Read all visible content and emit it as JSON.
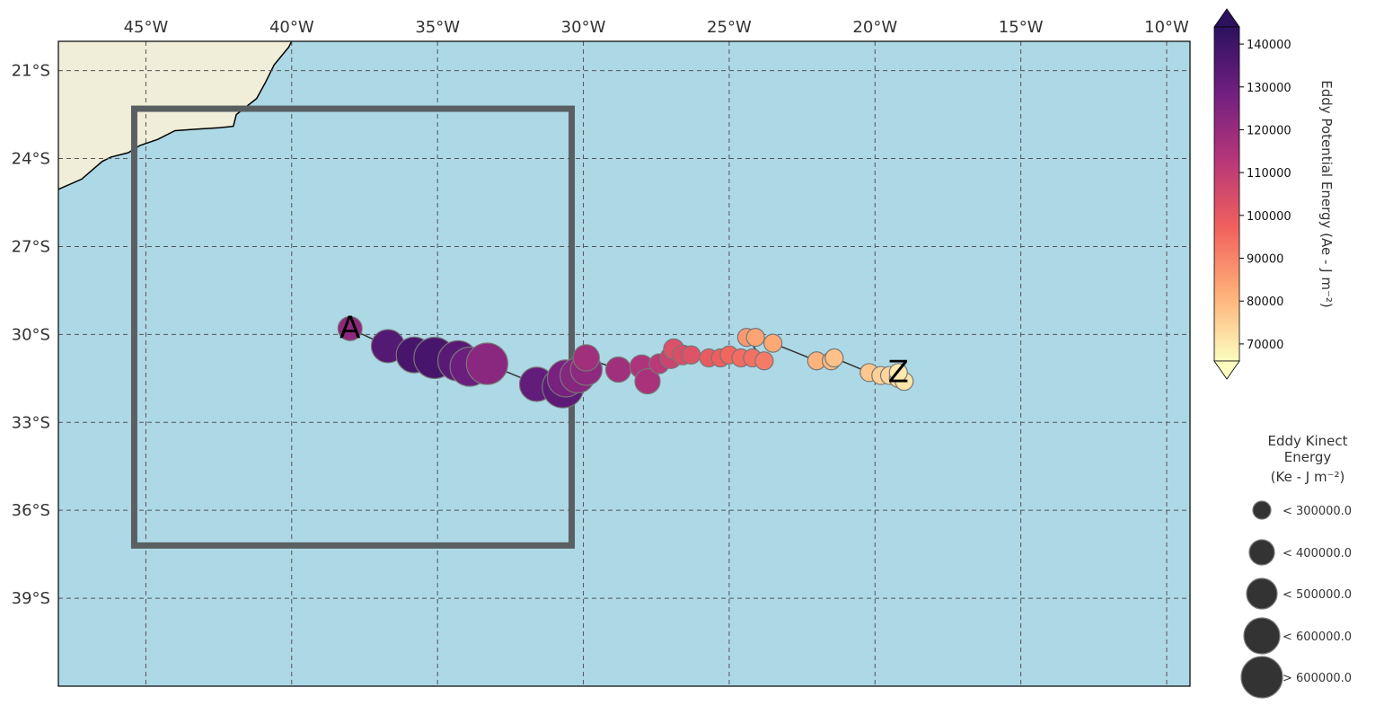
{
  "chart_data": {
    "type": "scatter",
    "title": "",
    "map": {
      "lon_range": [
        -48,
        -9.2
      ],
      "lat_range": [
        -20,
        -42
      ],
      "ocean_color": "#add8e6",
      "land_color": "#f0eed8",
      "grid": true,
      "lon_ticks": [
        -45,
        -40,
        -35,
        -30,
        -25,
        -20,
        -15,
        -10
      ],
      "lon_tick_labels": [
        "45°W",
        "40°W",
        "35°W",
        "30°W",
        "25°W",
        "20°W",
        "15°W",
        "10°W"
      ],
      "lat_ticks": [
        -21,
        -24,
        -27,
        -30,
        -33,
        -36,
        -39
      ],
      "lat_tick_labels": [
        "21°S",
        "24°S",
        "27°S",
        "30°S",
        "33°S",
        "36°S",
        "39°S"
      ]
    },
    "region_box": {
      "lon_min": -45.4,
      "lon_max": -30.4,
      "lat_min": -37.2,
      "lat_max": -22.3,
      "color": "#5a5f62"
    },
    "track": {
      "start_label": "A",
      "end_label": "Z",
      "points": [
        {
          "lon": -38.0,
          "lat": -29.8,
          "ape": 122000,
          "ke": 280000
        },
        {
          "lon": -36.7,
          "lat": -30.4,
          "ape": 135000,
          "ke": 450000
        },
        {
          "lon": -35.8,
          "lat": -30.7,
          "ape": 138000,
          "ke": 500000
        },
        {
          "lon": -35.1,
          "lat": -30.8,
          "ape": 138000,
          "ke": 650000
        },
        {
          "lon": -34.3,
          "lat": -30.9,
          "ape": 134000,
          "ke": 580000
        },
        {
          "lon": -33.9,
          "lat": -31.1,
          "ape": 130000,
          "ke": 560000
        },
        {
          "lon": -33.3,
          "lat": -31.0,
          "ape": 123000,
          "ke": 620000
        },
        {
          "lon": -31.6,
          "lat": -31.7,
          "ape": 132000,
          "ke": 470000
        },
        {
          "lon": -30.7,
          "lat": -31.8,
          "ape": 133000,
          "ke": 630000
        },
        {
          "lon": -30.6,
          "lat": -31.5,
          "ape": 127000,
          "ke": 520000
        },
        {
          "lon": -30.2,
          "lat": -31.4,
          "ape": 124000,
          "ke": 480000
        },
        {
          "lon": -29.9,
          "lat": -31.2,
          "ape": 122000,
          "ke": 420000
        },
        {
          "lon": -29.9,
          "lat": -30.8,
          "ape": 118000,
          "ke": 320000
        },
        {
          "lon": -28.8,
          "lat": -31.2,
          "ape": 118000,
          "ke": 300000
        },
        {
          "lon": -28.0,
          "lat": -31.1,
          "ape": 115000,
          "ke": 270000
        },
        {
          "lon": -27.8,
          "lat": -31.6,
          "ape": 116000,
          "ke": 300000
        },
        {
          "lon": -27.4,
          "lat": -31.0,
          "ape": 112000,
          "ke": 200000
        },
        {
          "lon": -27.0,
          "lat": -30.8,
          "ape": 108000,
          "ke": 230000
        },
        {
          "lon": -26.9,
          "lat": -30.5,
          "ape": 103000,
          "ke": 210000
        },
        {
          "lon": -26.6,
          "lat": -30.7,
          "ape": 104000,
          "ke": 200000
        },
        {
          "lon": -26.3,
          "lat": -30.7,
          "ape": 102000,
          "ke": 170000
        },
        {
          "lon": -25.7,
          "lat": -30.8,
          "ape": 99000,
          "ke": 160000
        },
        {
          "lon": -25.3,
          "lat": -30.8,
          "ape": 98000,
          "ke": 155000
        },
        {
          "lon": -25.0,
          "lat": -30.7,
          "ape": 96000,
          "ke": 150000
        },
        {
          "lon": -24.6,
          "lat": -30.8,
          "ape": 95000,
          "ke": 140000
        },
        {
          "lon": -24.2,
          "lat": -30.8,
          "ape": 94000,
          "ke": 140000
        },
        {
          "lon": -23.8,
          "lat": -30.9,
          "ape": 92000,
          "ke": 150000
        },
        {
          "lon": -24.4,
          "lat": -30.1,
          "ape": 86000,
          "ke": 150000
        },
        {
          "lon": -24.1,
          "lat": -30.1,
          "ape": 84000,
          "ke": 160000
        },
        {
          "lon": -23.5,
          "lat": -30.3,
          "ape": 83000,
          "ke": 140000
        },
        {
          "lon": -22.0,
          "lat": -30.9,
          "ape": 81000,
          "ke": 140000
        },
        {
          "lon": -21.5,
          "lat": -30.9,
          "ape": 80000,
          "ke": 150000
        },
        {
          "lon": -21.4,
          "lat": -30.8,
          "ape": 78000,
          "ke": 130000
        },
        {
          "lon": -20.2,
          "lat": -31.3,
          "ape": 77000,
          "ke": 140000
        },
        {
          "lon": -19.8,
          "lat": -31.4,
          "ape": 75000,
          "ke": 150000
        },
        {
          "lon": -19.5,
          "lat": -31.4,
          "ape": 74000,
          "ke": 150000
        },
        {
          "lon": -19.2,
          "lat": -31.5,
          "ape": 72000,
          "ke": 140000
        },
        {
          "lon": -19.0,
          "lat": -31.6,
          "ape": 71000,
          "ke": 150000
        },
        {
          "lon": -19.2,
          "lat": -31.3,
          "ape": 70000,
          "ke": 130000
        }
      ]
    },
    "colorbar": {
      "label": "Eddy Potential Energy (Ae - J m⁻²)",
      "vmin": 66000,
      "vmax": 144000,
      "ticks": [
        70000,
        80000,
        90000,
        100000,
        110000,
        120000,
        130000,
        140000
      ],
      "tick_labels": [
        "70000",
        "80000",
        "90000",
        "100000",
        "110000",
        "120000",
        "130000",
        "140000"
      ],
      "extend": "both",
      "colormap": "magma_r",
      "stops": [
        "#fcfdbf",
        "#feb078",
        "#f1605d",
        "#b73779",
        "#721f81",
        "#2c115f"
      ]
    },
    "size_legend": {
      "title_lines": [
        "Eddy Kinect",
        "Energy",
        "(Ke -  J m⁻²)"
      ],
      "items": [
        {
          "label": "< 300000.0",
          "ke": 300000
        },
        {
          "label": "< 400000.0",
          "ke": 400000
        },
        {
          "label": "< 500000.0",
          "ke": 500000
        },
        {
          "label": "< 600000.0",
          "ke": 600000
        },
        {
          "label": "> 600000.0",
          "ke": 700000
        }
      ],
      "marker_color": "#333333"
    }
  }
}
